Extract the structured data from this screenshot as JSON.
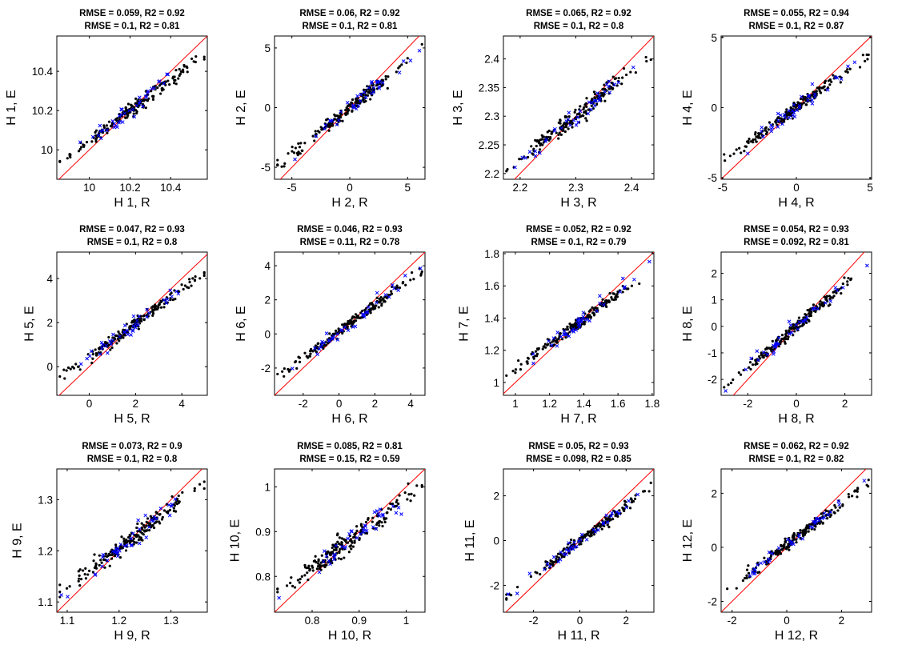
{
  "chart_data": [
    {
      "type": "scatter",
      "title": [
        "RMSE = 0.059, R2 = 0.92",
        "RMSE = 0.1, R2 = 0.81"
      ],
      "xlabel": "H 1, R",
      "ylabel": "H 1, E",
      "xlim": [
        9.84,
        10.58
      ],
      "ylim": [
        9.85,
        10.58
      ],
      "xticks": [
        10,
        10.2,
        10.4
      ],
      "yticks": [
        10,
        10.2,
        10.4
      ],
      "xtick_labels": [
        "10",
        "10.2",
        "10.4"
      ],
      "ytick_labels": [
        "10",
        "10.2",
        "10.4"
      ],
      "n_black": 185,
      "n_blue": 40,
      "black_spread": 0.022,
      "blue_spread": 0.03,
      "diag_range": [
        9.84,
        10.58
      ]
    },
    {
      "type": "scatter",
      "title": [
        "RMSE = 0.06, R2 = 0.92",
        "RMSE = 0.1, R2 = 0.81"
      ],
      "xlabel": "H 2, R",
      "ylabel": "H 2, E",
      "xlim": [
        -6.5,
        6.5
      ],
      "ylim": [
        -6,
        6
      ],
      "xticks": [
        -5,
        0,
        5
      ],
      "yticks": [
        -5,
        0,
        5
      ],
      "xtick_labels": [
        "-5",
        "0",
        "5"
      ],
      "ytick_labels": [
        "-5",
        "0",
        "5"
      ],
      "n_black": 185,
      "n_blue": 40,
      "black_spread": 0.022,
      "blue_spread": 0.03,
      "diag_range": [
        -6.5,
        6.5
      ]
    },
    {
      "type": "scatter",
      "title": [
        "RMSE = 0.065, R2 = 0.92",
        "RMSE = 0.1, R2 = 0.8"
      ],
      "xlabel": "H 3, R",
      "ylabel": "H 3, E",
      "xlim": [
        2.17,
        2.44
      ],
      "ylim": [
        2.19,
        2.44
      ],
      "xticks": [
        2.2,
        2.3,
        2.4
      ],
      "yticks": [
        2.2,
        2.25,
        2.3,
        2.35,
        2.4
      ],
      "xtick_labels": [
        "2.2",
        "2.3",
        "2.4"
      ],
      "ytick_labels": [
        "2.2",
        "2.25",
        "2.3",
        "2.35",
        "2.4"
      ],
      "n_black": 185,
      "n_blue": 40,
      "black_spread": 0.03,
      "blue_spread": 0.035,
      "diag_range": [
        2.17,
        2.44
      ]
    },
    {
      "type": "scatter",
      "title": [
        "RMSE = 0.055, R2 = 0.94",
        "RMSE = 0.1, R2 = 0.87"
      ],
      "xlabel": "H 4, R",
      "ylabel": "H 4, E",
      "xlim": [
        -5.1,
        5.1
      ],
      "ylim": [
        -5.1,
        5.1
      ],
      "xticks": [
        -5,
        0,
        5
      ],
      "yticks": [
        -5,
        0,
        5
      ],
      "xtick_labels": [
        "-5",
        "0",
        "5"
      ],
      "ytick_labels": [
        "-5",
        "0",
        "5"
      ],
      "n_black": 185,
      "n_blue": 40,
      "black_spread": 0.022,
      "blue_spread": 0.03,
      "diag_range": [
        -5.1,
        5.1
      ]
    },
    {
      "type": "scatter",
      "title": [
        "RMSE = 0.047, R2 = 0.93",
        "RMSE = 0.1, R2 = 0.8"
      ],
      "xlabel": "H 5, R",
      "ylabel": "H 5, E",
      "xlim": [
        -1.4,
        5.1
      ],
      "ylim": [
        -1.3,
        5.2
      ],
      "xticks": [
        0,
        2,
        4
      ],
      "yticks": [
        0,
        2,
        4
      ],
      "xtick_labels": [
        "0",
        "2",
        "4"
      ],
      "ytick_labels": [
        "0",
        "2",
        "4"
      ],
      "n_black": 185,
      "n_blue": 40,
      "black_spread": 0.02,
      "blue_spread": 0.028,
      "diag_range": [
        -1.4,
        5.1
      ]
    },
    {
      "type": "scatter",
      "title": [
        "RMSE = 0.046, R2 = 0.93",
        "RMSE = 0.11, R2 = 0.78"
      ],
      "xlabel": "H 6, R",
      "ylabel": "H 6, E",
      "xlim": [
        -3.6,
        4.8
      ],
      "ylim": [
        -3.6,
        4.8
      ],
      "xticks": [
        -2,
        0,
        2,
        4
      ],
      "yticks": [
        -2,
        0,
        2,
        4
      ],
      "xtick_labels": [
        "-2",
        "0",
        "2",
        "4"
      ],
      "ytick_labels": [
        "-2",
        "0",
        "2",
        "4"
      ],
      "n_black": 185,
      "n_blue": 40,
      "black_spread": 0.02,
      "blue_spread": 0.03,
      "diag_range": [
        -3.6,
        4.8
      ]
    },
    {
      "type": "scatter",
      "title": [
        "RMSE = 0.052, R2 = 0.92",
        "RMSE = 0.1, R2 = 0.79"
      ],
      "xlabel": "H 7, R",
      "ylabel": "H 7, E",
      "xlim": [
        0.93,
        1.81
      ],
      "ylim": [
        0.92,
        1.81
      ],
      "xticks": [
        1,
        1.2,
        1.4,
        1.6,
        1.8
      ],
      "yticks": [
        1,
        1.2,
        1.4,
        1.6,
        1.8
      ],
      "xtick_labels": [
        "1",
        "1.2",
        "1.4",
        "1.6",
        "1.8"
      ],
      "ytick_labels": [
        "1",
        "1.2",
        "1.4",
        "1.6",
        "1.8"
      ],
      "n_black": 185,
      "n_blue": 40,
      "black_spread": 0.02,
      "blue_spread": 0.03,
      "diag_range": [
        0.93,
        1.81
      ]
    },
    {
      "type": "scatter",
      "title": [
        "RMSE = 0.054, R2 = 0.93",
        "RMSE = 0.092, R2 = 0.81"
      ],
      "xlabel": "H 8, R",
      "ylabel": "H 8, E",
      "xlim": [
        -3.1,
        3.1
      ],
      "ylim": [
        -2.6,
        2.8
      ],
      "xticks": [
        -2,
        0,
        2
      ],
      "yticks": [
        -2,
        -1,
        0,
        1,
        2
      ],
      "xtick_labels": [
        "-2",
        "0",
        "2"
      ],
      "ytick_labels": [
        "-2",
        "-1",
        "0",
        "1",
        "2"
      ],
      "n_black": 185,
      "n_blue": 40,
      "black_spread": 0.022,
      "blue_spread": 0.03,
      "diag_range": [
        -3.1,
        3.1
      ]
    },
    {
      "type": "scatter",
      "title": [
        "RMSE = 0.073, R2 = 0.9",
        "RMSE = 0.1, R2 = 0.8"
      ],
      "xlabel": "H 9, R",
      "ylabel": "H 9, E",
      "xlim": [
        1.08,
        1.37
      ],
      "ylim": [
        1.08,
        1.36
      ],
      "xticks": [
        1.1,
        1.2,
        1.3
      ],
      "yticks": [
        1.1,
        1.2,
        1.3
      ],
      "xtick_labels": [
        "1.1",
        "1.2",
        "1.3"
      ],
      "ytick_labels": [
        "1.1",
        "1.2",
        "1.3"
      ],
      "n_black": 185,
      "n_blue": 40,
      "black_spread": 0.03,
      "blue_spread": 0.035,
      "diag_range": [
        1.08,
        1.37
      ]
    },
    {
      "type": "scatter",
      "title": [
        "RMSE = 0.085, R2 = 0.81",
        "RMSE = 0.15, R2 = 0.59"
      ],
      "xlabel": "H 10, R",
      "ylabel": "H 10, E",
      "xlim": [
        0.72,
        1.04
      ],
      "ylim": [
        0.72,
        1.04
      ],
      "xticks": [
        0.8,
        0.9,
        1
      ],
      "yticks": [
        0.8,
        0.9,
        1
      ],
      "xtick_labels": [
        "0.8",
        "0.9",
        "1"
      ],
      "ytick_labels": [
        "0.8",
        "0.9",
        "1"
      ],
      "n_black": 185,
      "n_blue": 40,
      "black_spread": 0.035,
      "blue_spread": 0.045,
      "diag_range": [
        0.72,
        1.04
      ]
    },
    {
      "type": "scatter",
      "title": [
        "RMSE = 0.05, R2 = 0.93",
        "RMSE = 0.098, R2 = 0.85"
      ],
      "xlabel": "H 11, R",
      "ylabel": "H 11, E",
      "xlim": [
        -3.3,
        3.2
      ],
      "ylim": [
        -3.2,
        3.2
      ],
      "xticks": [
        -2,
        0,
        2
      ],
      "yticks": [
        -2,
        0,
        2
      ],
      "xtick_labels": [
        "-2",
        "0",
        "2"
      ],
      "ytick_labels": [
        "-2",
        "0",
        "2"
      ],
      "n_black": 185,
      "n_blue": 40,
      "black_spread": 0.018,
      "blue_spread": 0.025,
      "diag_range": [
        -3.3,
        3.2
      ]
    },
    {
      "type": "scatter",
      "title": [
        "RMSE = 0.062, R2 = 0.92",
        "RMSE = 0.1, R2 = 0.82"
      ],
      "xlabel": "H 12, R",
      "ylabel": "H 12, E",
      "xlim": [
        -2.4,
        3.1
      ],
      "ylim": [
        -2.4,
        2.9
      ],
      "xticks": [
        -2,
        0,
        2
      ],
      "yticks": [
        -2,
        0,
        2
      ],
      "xtick_labels": [
        "-2",
        "0",
        "2"
      ],
      "ytick_labels": [
        "-2",
        "0",
        "2"
      ],
      "n_black": 185,
      "n_blue": 40,
      "black_spread": 0.022,
      "blue_spread": 0.03,
      "diag_range": [
        -2.4,
        3.1
      ]
    }
  ],
  "colors": {
    "train_points": "#000000",
    "test_points": "#0000ff",
    "diagonal": "#ff0000",
    "axes": "#000000",
    "background": "#ffffff"
  }
}
